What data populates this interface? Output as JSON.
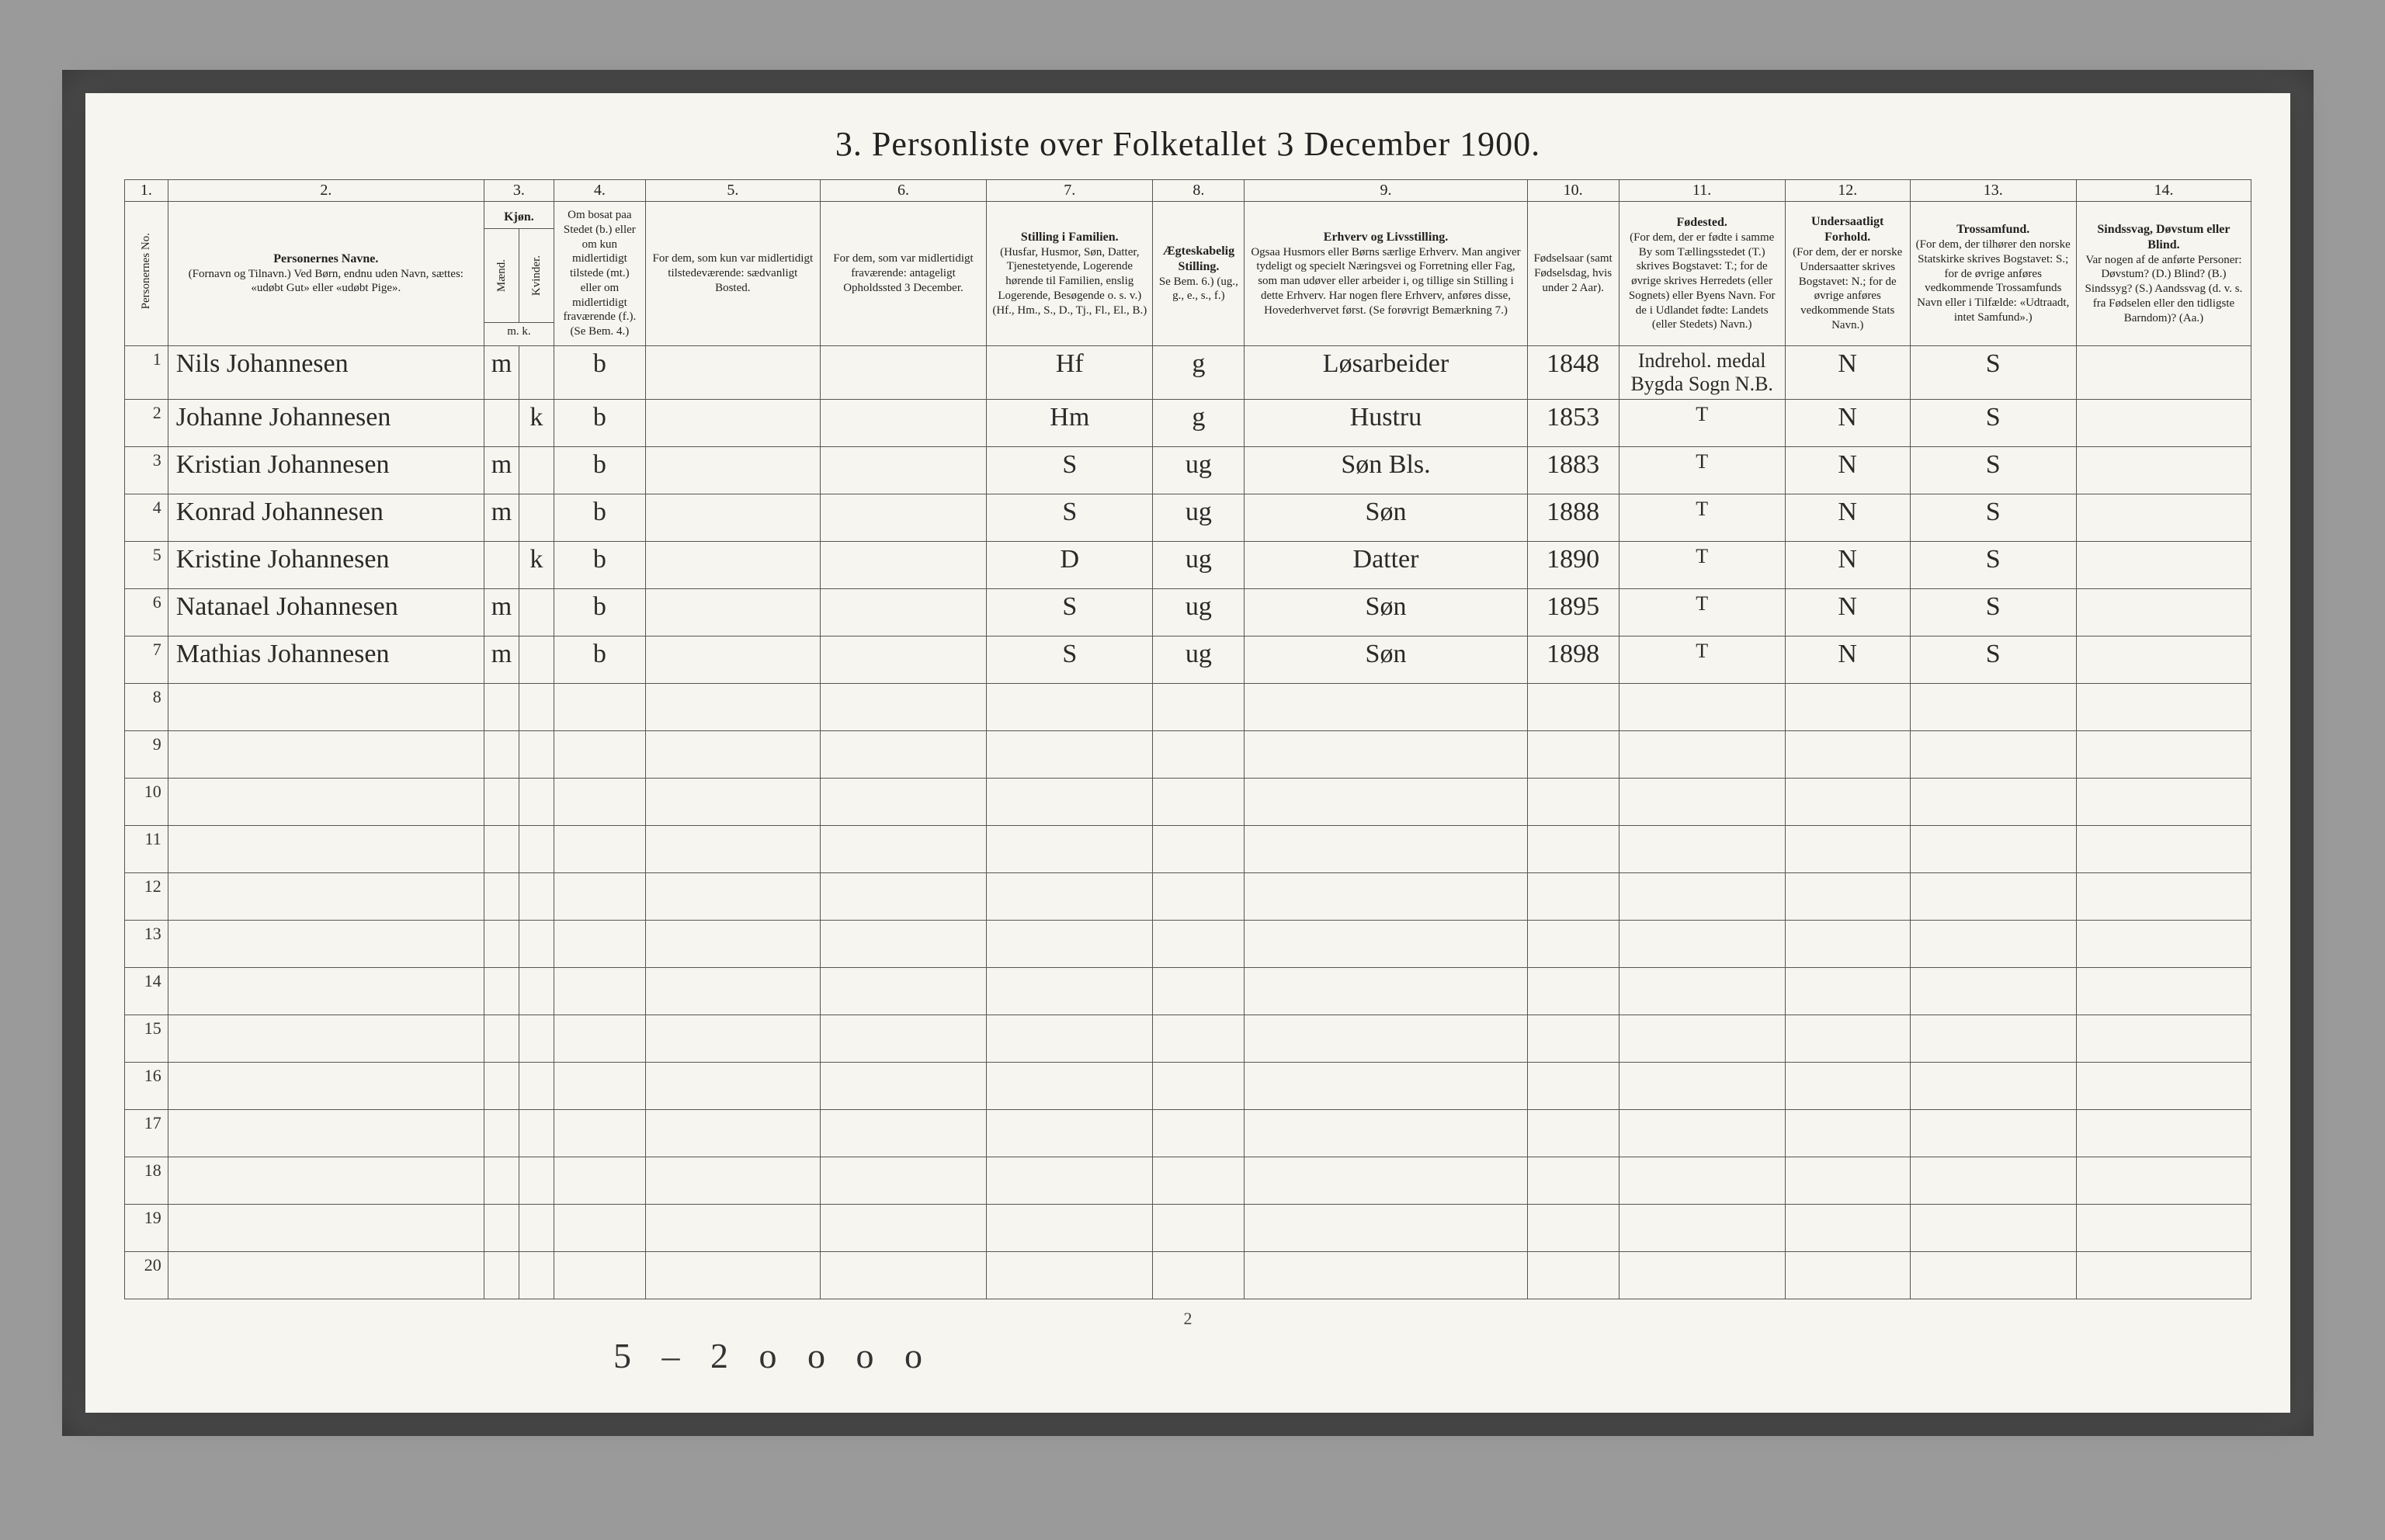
{
  "title": "3. Personliste over Folketallet 3 December 1900.",
  "page_number": "2",
  "bottom_scrawl": "5 – 2   o o     o o",
  "colors": {
    "page_bg": "#f7f5ef",
    "mat_bg": "#585858",
    "outer_bg": "#9a9a9a",
    "rule": "#555555",
    "ink": "#2a2a2a"
  },
  "column_numbers": [
    "1.",
    "2.",
    "3.",
    "4.",
    "5.",
    "6.",
    "7.",
    "8.",
    "9.",
    "10.",
    "11.",
    "12.",
    "13.",
    "14."
  ],
  "headers": {
    "c1": "Personernes No.",
    "c2_title": "Personernes Navne.",
    "c2_sub": "(Fornavn og Tilnavn.)\nVed Børn, endnu uden Navn, sættes: «udøbt Gut» eller «udøbt Pige».",
    "c3_title": "Kjøn.",
    "c3a": "Mænd.",
    "c3b": "Kvinder.",
    "c3_foot": "m.   k.",
    "c4": "Om bosat paa Stedet (b.) eller om kun midlertidigt tilstede (mt.) eller om midlertidigt fraværende (f.).\n(Se Bem. 4.)",
    "c5": "For dem, som kun var midlertidigt tilstedeværende:\nsædvanligt Bosted.",
    "c6": "For dem, som var midlertidigt fraværende:\nantageligt Opholdssted 3 December.",
    "c7_title": "Stilling i Familien.",
    "c7_sub": "(Husfar, Husmor, Søn, Datter, Tjenestetyende, Logerende hørende til Familien, enslig Logerende, Besøgende o. s. v.)\n(Hf., Hm., S., D., Tj., Fl., El., B.)",
    "c8_title": "Ægteskabelig Stilling.",
    "c8_sub": "Se Bem. 6.)\n(ug., g., e., s., f.)",
    "c9_title": "Erhverv og Livsstilling.",
    "c9_sub": "Ogsaa Husmors eller Børns særlige Erhverv. Man angiver tydeligt og specielt Næringsvei og Forretning eller Fag, som man udøver eller arbeider i, og tillige sin Stilling i dette Erhverv. Har nogen flere Erhverv, anføres disse, Hovederhvervet først.\n(Se forøvrigt Bemærkning 7.)",
    "c10": "Fødselsaar (samt Fødselsdag, hvis under 2 Aar).",
    "c11_title": "Fødested.",
    "c11_sub": "(For dem, der er fødte i samme By som Tællingsstedet (T.) skrives Bogstavet: T.; for de øvrige skrives Herredets (eller Sognets) eller Byens Navn. For de i Udlandet fødte: Landets (eller Stedets) Navn.)",
    "c12_title": "Undersaatligt Forhold.",
    "c12_sub": "(For dem, der er norske Undersaatter skrives Bogstavet: N.; for de øvrige anføres vedkommende Stats Navn.)",
    "c13_title": "Trossamfund.",
    "c13_sub": "(For dem, der tilhører den norske Statskirke skrives Bogstavet: S.; for de øvrige anføres vedkommende Trossamfunds Navn eller i Tilfælde: «Udtraadt, intet Samfund».)",
    "c14_title": "Sindssvag, Døvstum eller Blind.",
    "c14_sub": "Var nogen af de anførte Personer:\nDøvstum?  (D.)\nBlind?  (B.)\nSindssyg?  (S.)\nAandssvag (d. v. s. fra Fødselen eller den tidligste Barndom)? (Aa.)"
  },
  "rows": [
    {
      "n": "1",
      "name": "Nils Johannesen",
      "sex_m": "m",
      "sex_k": "",
      "res": "b",
      "c5": "",
      "c6": "",
      "fam": "Hf",
      "civ": "g",
      "occ": "Løsarbeider",
      "birth": "1848",
      "born": "Indrehol. medal Bygda Sogn N.B.",
      "nat": "N",
      "rel": "S",
      "c14": ""
    },
    {
      "n": "2",
      "name": "Johanne Johannesen",
      "sex_m": "",
      "sex_k": "k",
      "res": "b",
      "c5": "",
      "c6": "",
      "fam": "Hm",
      "civ": "g",
      "occ": "Hustru",
      "birth": "1853",
      "born": "T",
      "nat": "N",
      "rel": "S",
      "c14": ""
    },
    {
      "n": "3",
      "name": "Kristian Johannesen",
      "sex_m": "m",
      "sex_k": "",
      "res": "b",
      "c5": "",
      "c6": "",
      "fam": "S",
      "civ": "ug",
      "occ": "Søn  Bls.",
      "birth": "1883",
      "born": "T",
      "nat": "N",
      "rel": "S",
      "c14": ""
    },
    {
      "n": "4",
      "name": "Konrad Johannesen",
      "sex_m": "m",
      "sex_k": "",
      "res": "b",
      "c5": "",
      "c6": "",
      "fam": "S",
      "civ": "ug",
      "occ": "Søn",
      "birth": "1888",
      "born": "T",
      "nat": "N",
      "rel": "S",
      "c14": ""
    },
    {
      "n": "5",
      "name": "Kristine Johannesen",
      "sex_m": "",
      "sex_k": "k",
      "res": "b",
      "c5": "",
      "c6": "",
      "fam": "D",
      "civ": "ug",
      "occ": "Datter",
      "birth": "1890",
      "born": "T",
      "nat": "N",
      "rel": "S",
      "c14": ""
    },
    {
      "n": "6",
      "name": "Natanael Johannesen",
      "sex_m": "m",
      "sex_k": "",
      "res": "b",
      "c5": "",
      "c6": "",
      "fam": "S",
      "civ": "ug",
      "occ": "Søn",
      "birth": "1895",
      "born": "T",
      "nat": "N",
      "rel": "S",
      "c14": ""
    },
    {
      "n": "7",
      "name": "Mathias Johannesen",
      "sex_m": "m",
      "sex_k": "",
      "res": "b",
      "c5": "",
      "c6": "",
      "fam": "S",
      "civ": "ug",
      "occ": "Søn",
      "birth": "1898",
      "born": "T",
      "nat": "N",
      "rel": "S",
      "c14": ""
    }
  ],
  "blank_rows": [
    "8",
    "9",
    "10",
    "11",
    "12",
    "13",
    "14",
    "15",
    "16",
    "17",
    "18",
    "19",
    "20"
  ]
}
